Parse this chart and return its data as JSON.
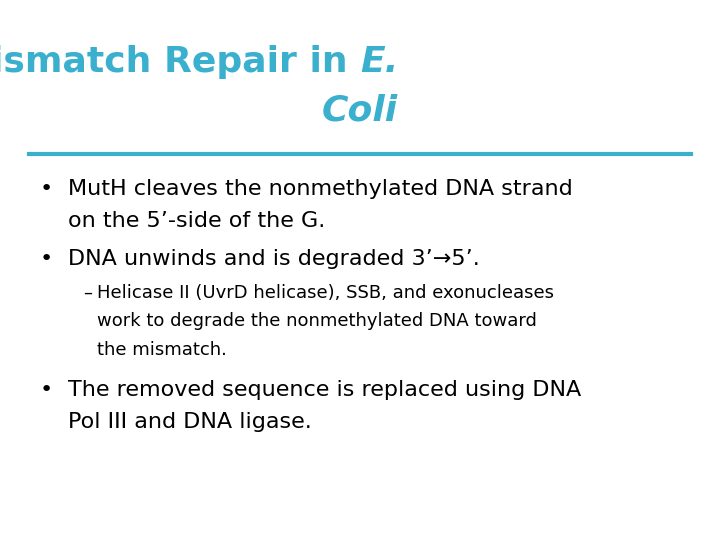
{
  "title_normal": "Mechanism of Mismatch Repair in ",
  "title_italic": "E.",
  "title_line2": "Coli",
  "title_color": "#3AAFCE",
  "title_fontsize": 26,
  "divider_color": "#3AAFCE",
  "bg_color": "#FFFFFF",
  "bullet1_line1": "MutH cleaves the nonmethylated DNA strand",
  "bullet1_line2": "on the 5’-side of the G.",
  "bullet2": "DNA unwinds and is degraded 3’→5’.",
  "sub1_line1": "Helicase II (UvrD helicase), SSB, and exonucleases",
  "sub1_line2": "work to degrade the nonmethylated DNA toward",
  "sub1_line3": "the mismatch.",
  "bullet3_line1": "The removed sequence is replaced using DNA",
  "bullet3_line2": "Pol III and DNA ligase.",
  "body_fontsize": 16,
  "sub_fontsize": 13
}
